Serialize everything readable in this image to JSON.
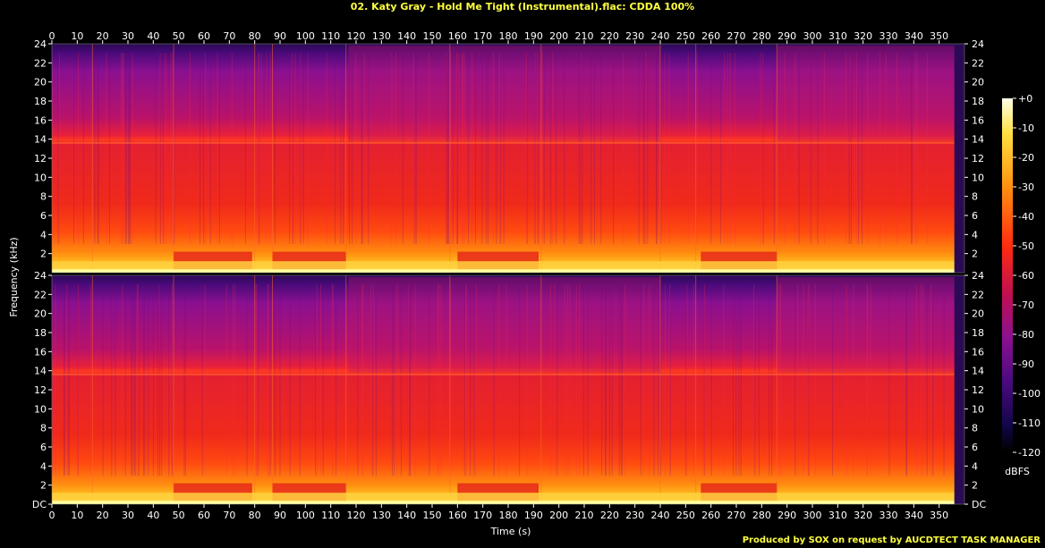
{
  "title": "02. Katy Gray - Hold Me Tight (Instrumental).flac: CDDA 100%",
  "credit": "Produced by SOX on request by AUCDTECT TASK MANAGER",
  "colors": {
    "background": "#000000",
    "title": "#ffff40",
    "axis_text": "#ffffff"
  },
  "chart_data": {
    "type": "heatmap",
    "title": "02. Katy Gray - Hold Me Tight (Instrumental).flac: CDDA 100%",
    "xlabel": "Time (s)",
    "ylabel": "Frequency (kHz)",
    "xlim": [
      0,
      360
    ],
    "ylim": [
      0,
      24
    ],
    "x_ticks": [
      "0",
      "10",
      "20",
      "30",
      "40",
      "50",
      "60",
      "70",
      "80",
      "90",
      "100",
      "110",
      "120",
      "130",
      "140",
      "150",
      "160",
      "170",
      "180",
      "190",
      "200",
      "210",
      "220",
      "230",
      "240",
      "250",
      "260",
      "270",
      "280",
      "290",
      "300",
      "310",
      "320",
      "330",
      "340",
      "350"
    ],
    "y_ticks": [
      "DC",
      "2",
      "4",
      "6",
      "8",
      "10",
      "12",
      "14",
      "16",
      "18",
      "20",
      "22",
      "24"
    ],
    "channels": 2,
    "colorbar": {
      "label": "dBFS",
      "range": [
        -120,
        0
      ],
      "ticks": [
        "+0",
        "-10",
        "-20",
        "-30",
        "-40",
        "-50",
        "-60",
        "-70",
        "-80",
        "-90",
        "-100",
        "-110",
        "-120"
      ]
    }
  }
}
